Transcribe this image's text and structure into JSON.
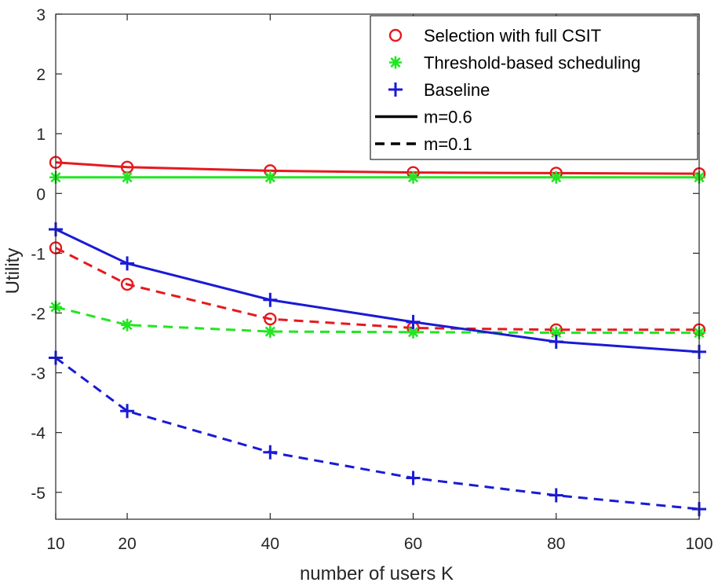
{
  "chart_data": {
    "type": "line",
    "title": "",
    "xlabel": "number of users K",
    "ylabel": "Utility",
    "x": [
      10,
      20,
      40,
      60,
      80,
      100
    ],
    "x_ticks": [
      10,
      20,
      40,
      60,
      80,
      100
    ],
    "y_ticks": [
      -5,
      -4,
      -3,
      -2,
      -1,
      0,
      1,
      2,
      3
    ],
    "xlim": [
      10,
      100
    ],
    "ylim": [
      -5.45,
      3
    ],
    "grid": false,
    "legend_position": "top-right",
    "series": [
      {
        "name": "Selection with full CSIT",
        "m": "m=0.6",
        "color": "#e6191e",
        "marker": "circle",
        "line": "solid",
        "values": [
          0.52,
          0.44,
          0.38,
          0.35,
          0.34,
          0.33
        ]
      },
      {
        "name": "Threshold-based scheduling",
        "m": "m=0.6",
        "color": "#22e622",
        "marker": "asterisk",
        "line": "solid",
        "values": [
          0.27,
          0.27,
          0.27,
          0.27,
          0.27,
          0.27
        ]
      },
      {
        "name": "Baseline",
        "m": "m=0.6",
        "color": "#1a1ad6",
        "marker": "plus",
        "line": "solid",
        "values": [
          -0.6,
          -1.17,
          -1.78,
          -2.15,
          -2.48,
          -2.65
        ]
      },
      {
        "name": "Selection with full CSIT",
        "m": "m=0.1",
        "color": "#e6191e",
        "marker": "circle",
        "line": "dashed",
        "values": [
          -0.91,
          -1.52,
          -2.1,
          -2.25,
          -2.28,
          -2.28
        ]
      },
      {
        "name": "Threshold-based scheduling",
        "m": "m=0.1",
        "color": "#22e622",
        "marker": "asterisk",
        "line": "dashed",
        "values": [
          -1.9,
          -2.2,
          -2.31,
          -2.32,
          -2.33,
          -2.33
        ]
      },
      {
        "name": "Baseline",
        "m": "m=0.1",
        "color": "#1a1ad6",
        "marker": "plus",
        "line": "dashed",
        "values": [
          -2.75,
          -3.64,
          -4.33,
          -4.76,
          -5.05,
          -5.28
        ]
      }
    ],
    "legend": [
      {
        "label": "Selection with full CSIT",
        "kind": "marker",
        "marker": "circle",
        "color": "#e6191e"
      },
      {
        "label": "Threshold-based scheduling",
        "kind": "marker",
        "marker": "asterisk",
        "color": "#22e622"
      },
      {
        "label": "Baseline",
        "kind": "marker",
        "marker": "plus",
        "color": "#1a1ad6"
      },
      {
        "label": "m=0.6",
        "kind": "line",
        "line": "solid",
        "color": "#000000"
      },
      {
        "label": "m=0.1",
        "kind": "line",
        "line": "dashed",
        "color": "#000000"
      }
    ]
  }
}
